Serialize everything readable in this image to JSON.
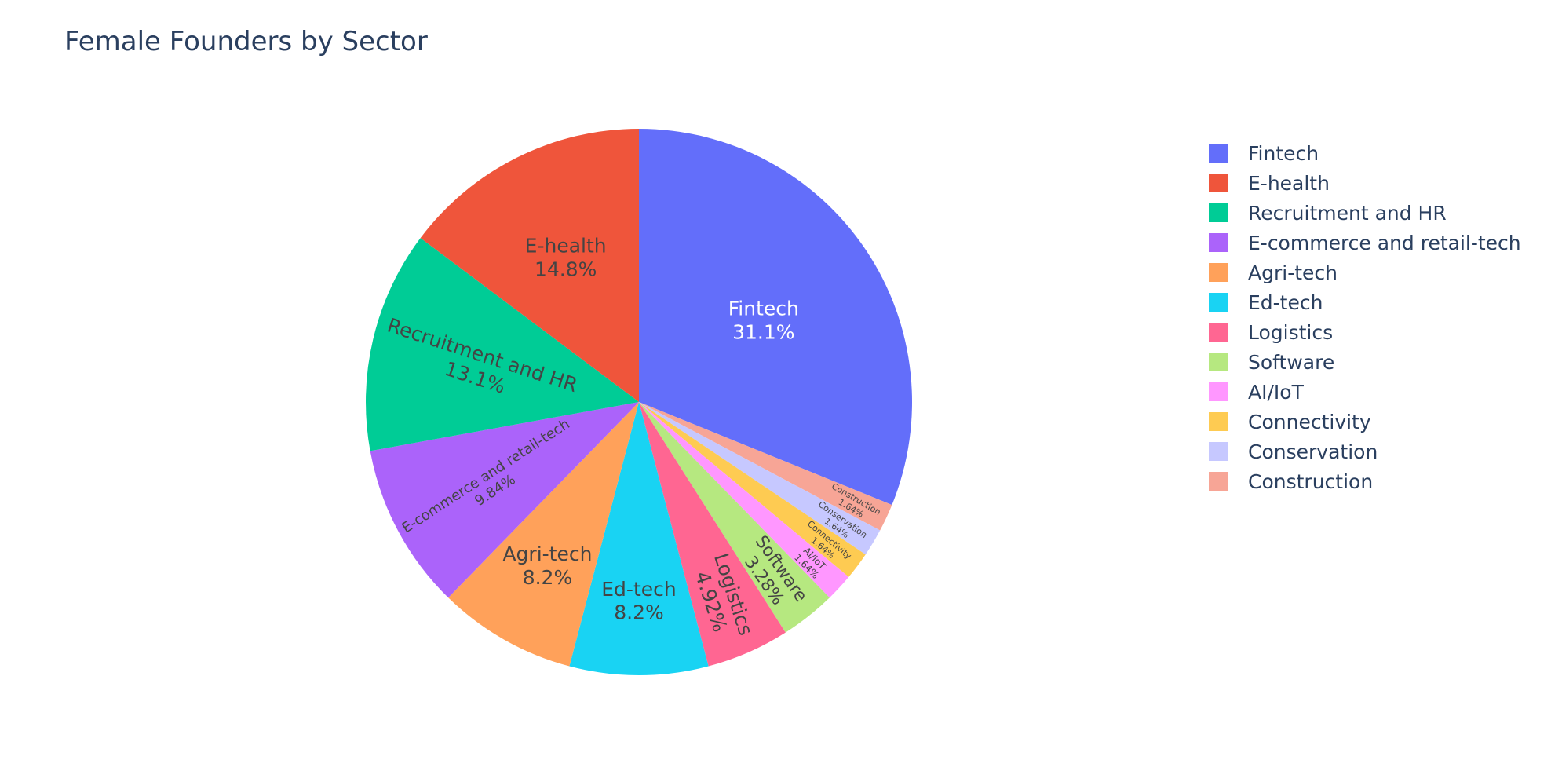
{
  "chart_data": {
    "type": "pie",
    "title": "Female Founders by Sector",
    "direction": "clockwise",
    "start_angle": "top",
    "text_info": "label+percent",
    "legend_position": "right",
    "categories": [
      "Fintech",
      "E-health",
      "Recruitment and HR",
      "E-commerce and retail-tech",
      "Agri-tech",
      "Ed-tech",
      "Logistics",
      "Software",
      "AI/IoT",
      "Connectivity",
      "Conservation",
      "Construction"
    ],
    "values": [
      19,
      9,
      8,
      6,
      5,
      5,
      3,
      2,
      1,
      1,
      1,
      1
    ],
    "percent_labels": [
      "31.1%",
      "14.8%",
      "13.1%",
      "9.84%",
      "8.2%",
      "8.2%",
      "4.92%",
      "3.28%",
      "1.64%",
      "1.64%",
      "1.64%",
      "1.64%"
    ],
    "slice_order": [
      "Fintech",
      "Construction",
      "Conservation",
      "Connectivity",
      "AI/IoT",
      "Software",
      "Logistics",
      "Ed-tech",
      "Agri-tech",
      "E-commerce and retail-tech",
      "Recruitment and HR",
      "E-health"
    ],
    "colors": [
      "#636efa",
      "#ef553b",
      "#00cc96",
      "#ab63fa",
      "#ffa15a",
      "#19d3f3",
      "#ff6692",
      "#b6e880",
      "#ff97ff",
      "#fecb52",
      "#c6c8ff",
      "#f7a596"
    ]
  }
}
